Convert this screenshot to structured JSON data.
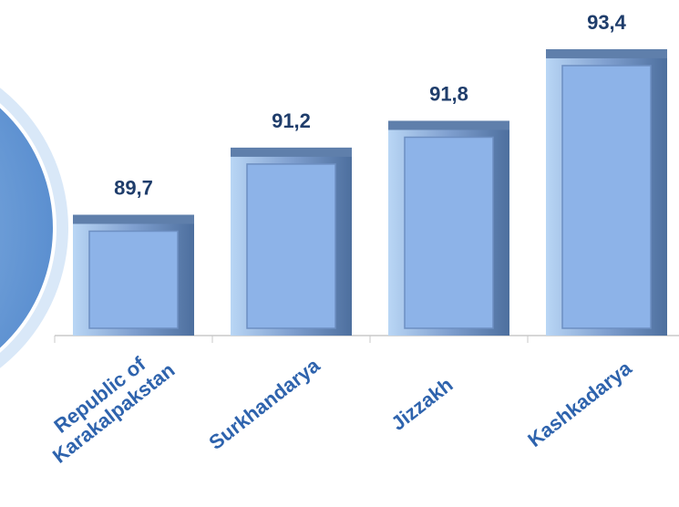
{
  "chart_data": {
    "type": "bar",
    "categories": [
      "Republic of Karakalpakstan",
      "Surkhandarya",
      "Jizzakh",
      "Kashkadarya"
    ],
    "values": [
      89.7,
      91.2,
      91.8,
      93.4
    ],
    "value_labels": [
      "89,7",
      "91,2",
      "91,8",
      "93,4"
    ],
    "color": "#8db3e8",
    "ylim": [
      87,
      94.5
    ]
  }
}
